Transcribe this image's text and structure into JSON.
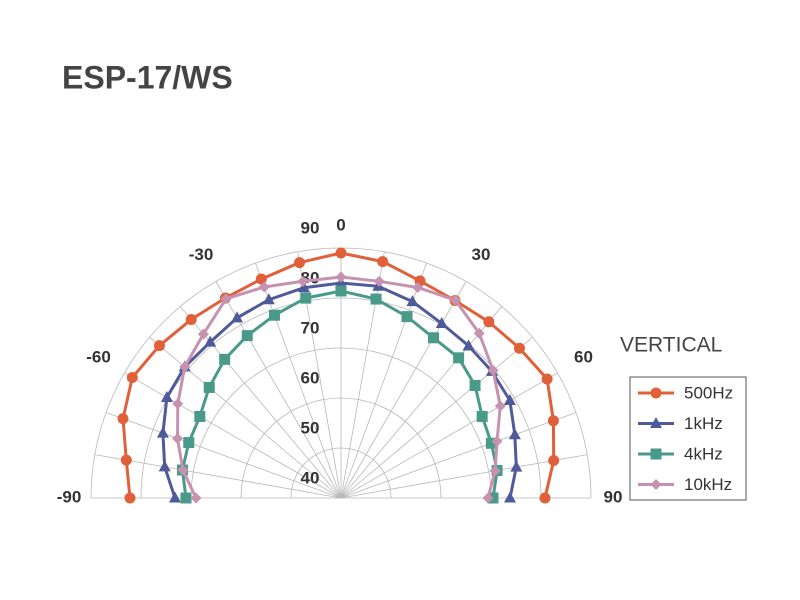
{
  "chart_data": {
    "type": "polar",
    "title": "ESP-17/WS",
    "annotation": "VERTICAL",
    "theta": [
      -90,
      -80,
      -70,
      -60,
      -50,
      -40,
      -30,
      -20,
      -10,
      0,
      10,
      20,
      30,
      40,
      50,
      60,
      70,
      80,
      90
    ],
    "thetaticks": [
      -90,
      -60,
      -30,
      0,
      30,
      60,
      90
    ],
    "rlim": [
      40,
      90
    ],
    "rticks": [
      40,
      50,
      60,
      70,
      80,
      90
    ],
    "grid": true,
    "series": [
      {
        "name": "500Hz",
        "color": "#e0603a",
        "marker": "circle",
        "values": [
          82.2,
          83.6,
          86.4,
          88.2,
          87.4,
          86.6,
          86.2,
          86.6,
          87.8,
          89,
          88,
          86.2,
          85.6,
          86,
          86.6,
          87.6,
          85.2,
          83.2,
          80.8
        ]
      },
      {
        "name": "1kHz",
        "color": "#4f5a9a",
        "marker": "triangle",
        "values": [
          73.2,
          75.8,
          77.9,
          80.2,
          80.8,
          80.7,
          81.6,
          82.2,
          82.7,
          83,
          83,
          81.8,
          80.3,
          79.7,
          79.4,
          79,
          77,
          75.6,
          73.8
        ]
      },
      {
        "name": "4kHz",
        "color": "#4a9a8a",
        "marker": "square",
        "values": [
          71,
          72.2,
          72.4,
          72.6,
          74.4,
          76.2,
          77.5,
          78.9,
          80.6,
          81.4,
          80.4,
          78.6,
          77,
          76.6,
          75,
          72.6,
          72,
          71.7,
          70.4
        ]
      },
      {
        "name": "10kHz",
        "color": "#c792b0",
        "marker": "diamond",
        "values": [
          69,
          72.1,
          74.8,
          77.7,
          80.8,
          82.8,
          86,
          84.9,
          84,
          84.2,
          84,
          84.8,
          85.7,
          83,
          79.7,
          76.8,
          73.2,
          71.3,
          69.4
        ]
      }
    ]
  }
}
